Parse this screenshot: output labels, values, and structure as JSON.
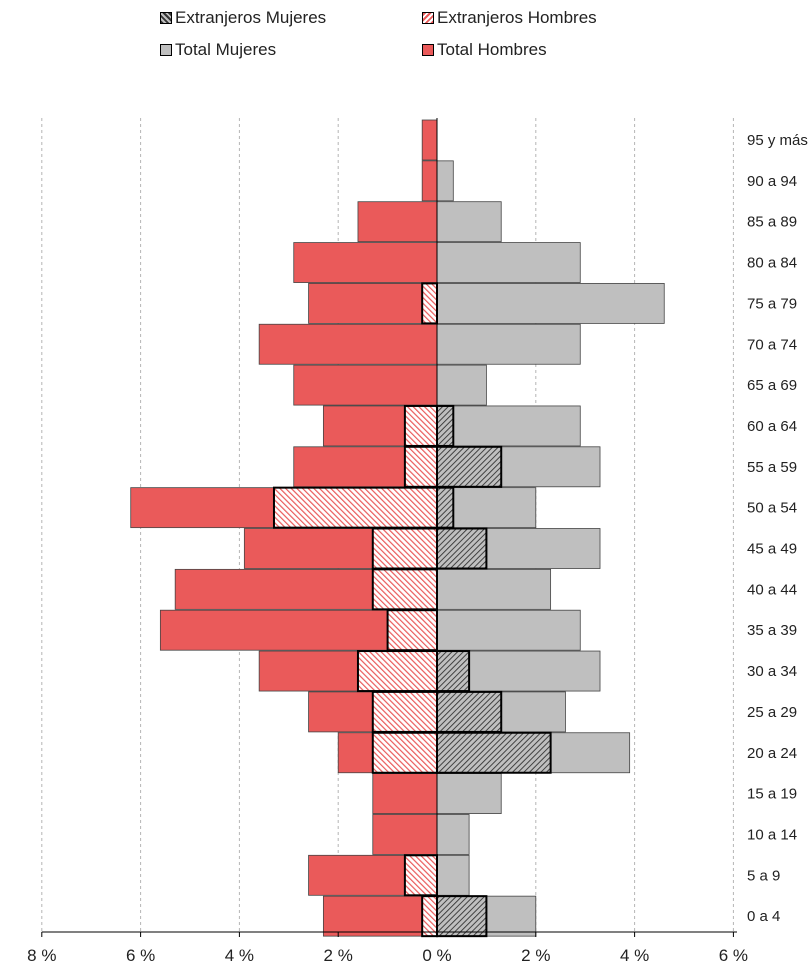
{
  "chart_data": {
    "type": "bar",
    "orientation": "horizontal-population-pyramid",
    "categories": [
      "0 a 4",
      "5 a 9",
      "10 a 14",
      "15 a 19",
      "20 a 24",
      "25 a 29",
      "30 a 34",
      "35 a 39",
      "40 a 44",
      "45 a 49",
      "50 a 54",
      "55 a 59",
      "60 a 64",
      "65 a 69",
      "70 a 74",
      "75 a 79",
      "80 a 84",
      "85 a 89",
      "90 a 94",
      "95 y más"
    ],
    "series": [
      {
        "name": "Total Hombres",
        "side": "left",
        "color": "#ea5a5a",
        "pattern": "solid",
        "values": [
          2.3,
          2.6,
          1.3,
          1.3,
          2.0,
          2.6,
          3.6,
          5.6,
          5.3,
          3.9,
          6.2,
          2.9,
          2.3,
          2.9,
          3.6,
          2.6,
          2.9,
          1.6,
          0.3,
          0.3
        ]
      },
      {
        "name": "Extranjeros Hombres",
        "side": "left",
        "color": "#ea5a5a",
        "pattern": "hatched",
        "values": [
          0.3,
          0.65,
          0,
          0,
          1.3,
          1.3,
          1.6,
          1.0,
          1.3,
          1.3,
          3.3,
          0.65,
          0.65,
          0,
          0,
          0.3,
          0,
          0,
          0,
          0
        ]
      },
      {
        "name": "Total Mujeres",
        "side": "right",
        "color": "#bfbfbf",
        "pattern": "solid",
        "values": [
          2.0,
          0.65,
          0.65,
          1.3,
          3.9,
          2.6,
          3.3,
          2.9,
          2.3,
          3.3,
          2.0,
          3.3,
          2.9,
          1.0,
          2.9,
          4.6,
          2.9,
          1.3,
          0.33,
          0
        ]
      },
      {
        "name": "Extranjeros Mujeres",
        "side": "right",
        "color": "#bfbfbf",
        "pattern": "hatched",
        "values": [
          1.0,
          0,
          0,
          0,
          2.3,
          1.3,
          0.65,
          0,
          0,
          1.0,
          0.33,
          1.3,
          0.33,
          0,
          0,
          0,
          0,
          0,
          0,
          0
        ]
      }
    ],
    "xticks": [
      "8 %",
      "6 %",
      "4 %",
      "2 %",
      "0 %",
      "2 %",
      "4 %",
      "6 %"
    ],
    "xlim": [
      -8,
      6
    ],
    "grid": "vertical dashed",
    "legend_position": "top"
  },
  "legend": {
    "items": [
      {
        "label": "Extranjeros Mujeres"
      },
      {
        "label": "Extranjeros Hombres"
      },
      {
        "label": "Total Mujeres"
      },
      {
        "label": "Total Hombres"
      }
    ]
  }
}
